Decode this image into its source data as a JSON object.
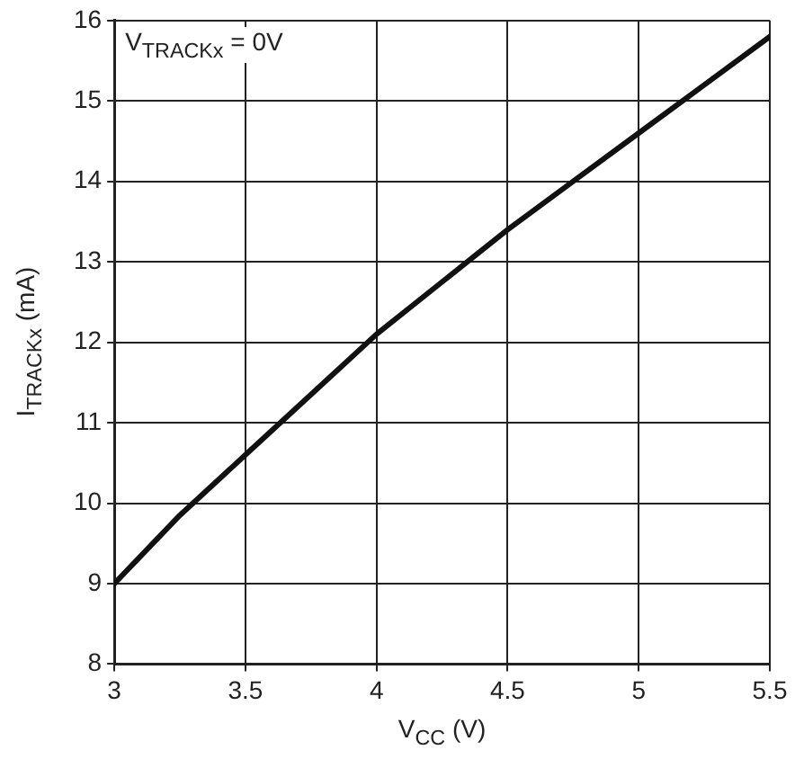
{
  "chart_data": {
    "type": "line",
    "xlabel": "V$_{CC}$ (V)",
    "ylabel": "I$_{TRACKx}$ (mA)",
    "annotations": [
      "V$_{TRACKx}$ = 0V"
    ],
    "x": [
      3,
      3.25,
      3.5,
      3.75,
      4,
      4.25,
      4.5,
      4.75,
      5,
      5.25,
      5.5
    ],
    "series": [
      {
        "color": "#111111",
        "values": [
          9,
          9.85,
          10.6,
          11.35,
          12.1,
          12.75,
          13.4,
          14.0,
          14.6,
          15.2,
          15.8
        ]
      }
    ],
    "xlim": [
      3,
      5.5
    ],
    "xticks": [
      3,
      3.5,
      4,
      4.5,
      5,
      5.5
    ],
    "ylim": [
      8,
      16
    ],
    "yticks": [
      8,
      9,
      10,
      11,
      12,
      13,
      14,
      15,
      16
    ],
    "grid": true,
    "legend": false,
    "marker": "none",
    "line_style": "solid"
  }
}
